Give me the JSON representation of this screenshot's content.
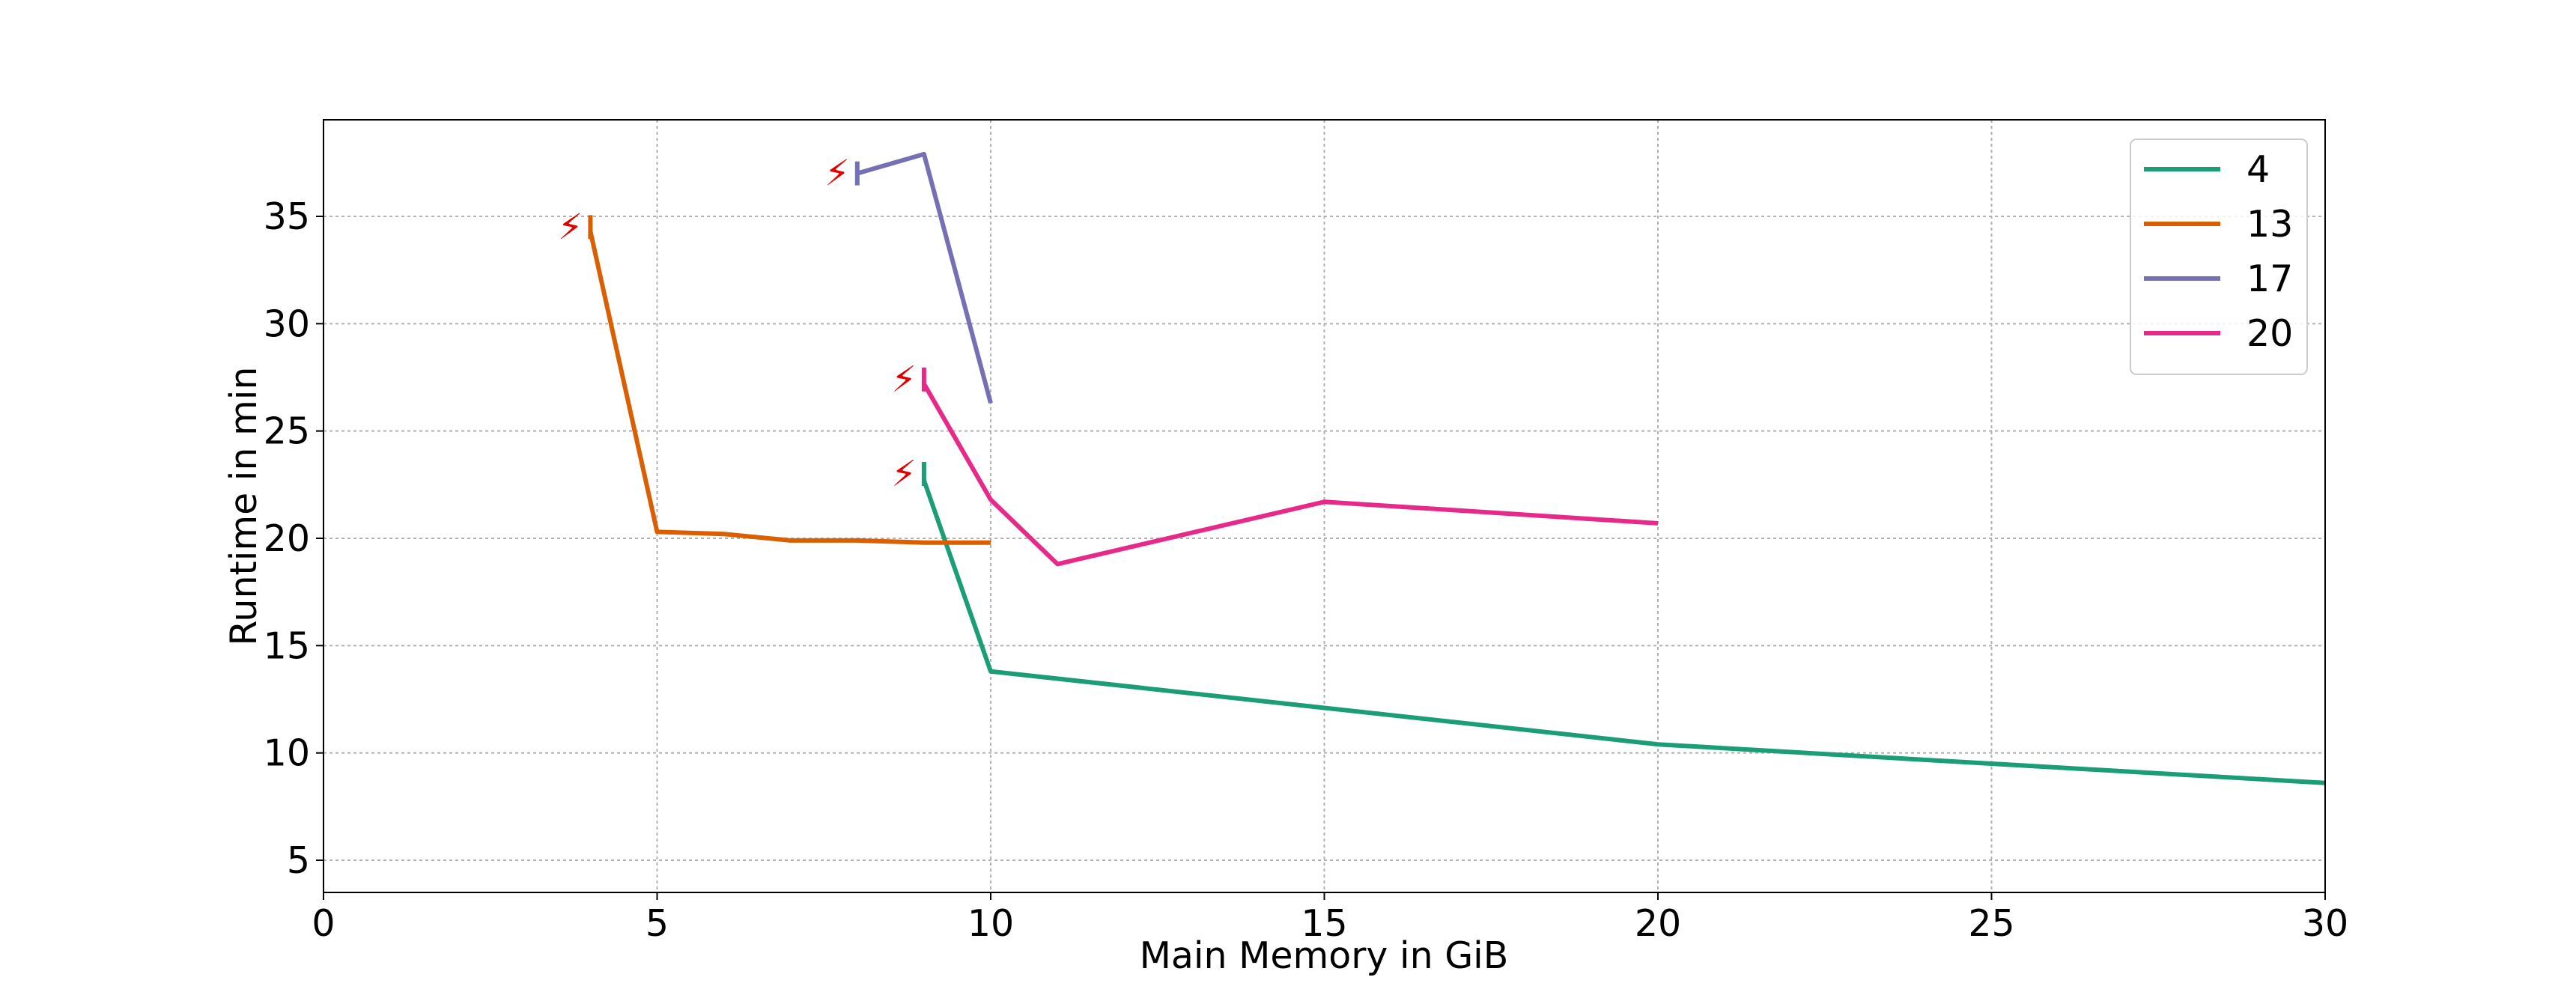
{
  "chart_data": {
    "type": "line",
    "xlabel": "Main Memory in GiB",
    "ylabel": "Runtime in min",
    "xlim": [
      0,
      30
    ],
    "ylim": [
      3.5,
      39.5
    ],
    "xticks": [
      0,
      5,
      10,
      15,
      20,
      25,
      30
    ],
    "yticks": [
      5,
      10,
      15,
      20,
      25,
      30,
      35
    ],
    "grid": true,
    "legend_position": "top-right",
    "failure_marker": "⚡",
    "series": [
      {
        "name": "4",
        "color": "#1b9e77",
        "x": [
          9,
          10,
          15,
          20,
          25,
          30
        ],
        "y": [
          22.7,
          13.8,
          12.1,
          10.4,
          9.5,
          8.6
        ],
        "failure_at": [
          9,
          23.0
        ]
      },
      {
        "name": "13",
        "color": "#d95f02",
        "x": [
          4,
          5,
          6,
          7,
          8,
          9,
          10
        ],
        "y": [
          34.3,
          20.3,
          20.2,
          19.9,
          19.9,
          19.8,
          19.8
        ],
        "failure_at": [
          4,
          34.5
        ]
      },
      {
        "name": "17",
        "color": "#7570b3",
        "x": [
          8,
          9,
          10
        ],
        "y": [
          37.0,
          37.9,
          26.3
        ],
        "failure_at": [
          8,
          37.0
        ]
      },
      {
        "name": "20",
        "color": "#e7298a",
        "x": [
          9,
          10,
          11,
          15,
          20
        ],
        "y": [
          27.2,
          21.8,
          18.8,
          21.7,
          20.7
        ],
        "failure_at": [
          9,
          27.4
        ]
      }
    ]
  }
}
